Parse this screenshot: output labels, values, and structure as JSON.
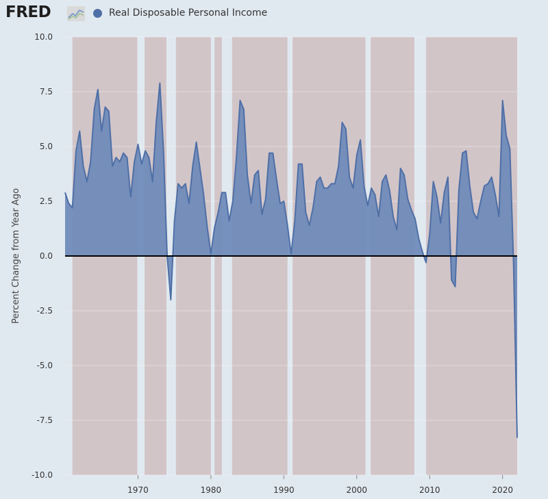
{
  "header": {
    "logo_text": "FRED",
    "legend_label": "Real Disposable Personal Income"
  },
  "colors": {
    "background": "#e1e9f0",
    "shading": "#d2c5c8",
    "series_fill": "#6a87b8",
    "series_line": "#4e6fa6",
    "zero_line": "#000000"
  },
  "chart_data": {
    "type": "area",
    "title": "",
    "xlabel": "",
    "ylabel": "Percent Change from Year Ago",
    "xlim": [
      1960.0,
      2022.0
    ],
    "ylim": [
      -10.0,
      10.0
    ],
    "yticks": [
      10.0,
      7.5,
      5.0,
      2.5,
      0.0,
      -2.5,
      -5.0,
      -7.5,
      -10.0
    ],
    "ytick_labels": [
      "10.0",
      "7.5",
      "5.0",
      "2.5",
      "0.0",
      "-2.5",
      "-5.0",
      "-7.5",
      "-10.0"
    ],
    "xticks": [
      1970,
      1980,
      1990,
      2000,
      2010,
      2020
    ],
    "xtick_labels": [
      "1970",
      "1980",
      "1990",
      "2000",
      "2010",
      "2020"
    ],
    "shaded_periods": [
      [
        1961.0,
        1969.9
      ],
      [
        1970.9,
        1973.9
      ],
      [
        1975.2,
        1980.0
      ],
      [
        1980.5,
        1981.5
      ],
      [
        1982.9,
        1990.5
      ],
      [
        1991.2,
        2001.2
      ],
      [
        2001.9,
        2007.9
      ],
      [
        2009.5,
        2022.0
      ]
    ],
    "series": [
      {
        "name": "Real Disposable Personal Income",
        "x": [
          1960.0,
          1960.5,
          1961.0,
          1961.5,
          1962.0,
          1962.5,
          1963.0,
          1963.5,
          1964.0,
          1964.5,
          1965.0,
          1965.5,
          1966.0,
          1966.5,
          1967.0,
          1967.5,
          1968.0,
          1968.5,
          1969.0,
          1969.5,
          1970.0,
          1970.5,
          1971.0,
          1971.5,
          1972.0,
          1972.5,
          1973.0,
          1973.5,
          1974.0,
          1974.5,
          1975.0,
          1975.5,
          1976.0,
          1976.5,
          1977.0,
          1977.5,
          1978.0,
          1978.5,
          1979.0,
          1979.5,
          1980.0,
          1980.5,
          1981.0,
          1981.5,
          1982.0,
          1982.5,
          1983.0,
          1983.5,
          1984.0,
          1984.5,
          1985.0,
          1985.5,
          1986.0,
          1986.5,
          1987.0,
          1987.5,
          1988.0,
          1988.5,
          1989.0,
          1989.5,
          1990.0,
          1990.5,
          1991.0,
          1991.5,
          1992.0,
          1992.5,
          1993.0,
          1993.5,
          1994.0,
          1994.5,
          1995.0,
          1995.5,
          1996.0,
          1996.5,
          1997.0,
          1997.5,
          1998.0,
          1998.5,
          1999.0,
          1999.5,
          2000.0,
          2000.5,
          2001.0,
          2001.5,
          2002.0,
          2002.5,
          2003.0,
          2003.5,
          2004.0,
          2004.5,
          2005.0,
          2005.5,
          2006.0,
          2006.5,
          2007.0,
          2007.5,
          2008.0,
          2008.5,
          2009.0,
          2009.5,
          2010.0,
          2010.5,
          2011.0,
          2011.5,
          2012.0,
          2012.5,
          2013.0,
          2013.5,
          2014.0,
          2014.5,
          2015.0,
          2015.5,
          2016.0,
          2016.5,
          2017.0,
          2017.5,
          2018.0,
          2018.5,
          2019.0,
          2019.5,
          2020.0,
          2020.5,
          2021.0,
          2021.5,
          2022.0
        ],
        "y": [
          2.9,
          2.4,
          2.2,
          4.8,
          5.7,
          4.1,
          3.4,
          4.3,
          6.7,
          7.6,
          5.7,
          6.8,
          6.6,
          4.1,
          4.5,
          4.3,
          4.7,
          4.5,
          2.7,
          4.3,
          5.1,
          4.2,
          4.8,
          4.5,
          3.4,
          6.1,
          7.9,
          4.8,
          0.0,
          -2.0,
          1.6,
          3.3,
          3.1,
          3.3,
          2.4,
          4.1,
          5.2,
          4.0,
          2.8,
          1.3,
          0.1,
          1.3,
          2.0,
          2.9,
          2.9,
          1.6,
          2.5,
          4.5,
          7.1,
          6.7,
          3.7,
          2.4,
          3.7,
          3.9,
          1.9,
          2.6,
          4.7,
          4.7,
          3.5,
          2.4,
          2.5,
          1.4,
          0.1,
          1.6,
          4.2,
          4.2,
          2.0,
          1.4,
          2.2,
          3.4,
          3.6,
          3.1,
          3.1,
          3.3,
          3.3,
          4.1,
          6.1,
          5.8,
          3.6,
          3.1,
          4.6,
          5.3,
          3.2,
          2.3,
          3.1,
          2.8,
          1.8,
          3.4,
          3.7,
          3.0,
          1.8,
          1.2,
          4.0,
          3.7,
          2.6,
          2.1,
          1.7,
          0.8,
          0.2,
          -0.3,
          1.0,
          3.4,
          2.7,
          1.5,
          2.9,
          3.6,
          -1.1,
          -1.4,
          3.0,
          4.7,
          4.8,
          3.2,
          2.0,
          1.7,
          2.5,
          3.2,
          3.3,
          3.6,
          2.8,
          1.8,
          7.1,
          5.5,
          4.9,
          -0.3,
          -8.3
        ]
      }
    ],
    "grid": "horizontal",
    "legend_position": "top-left"
  }
}
